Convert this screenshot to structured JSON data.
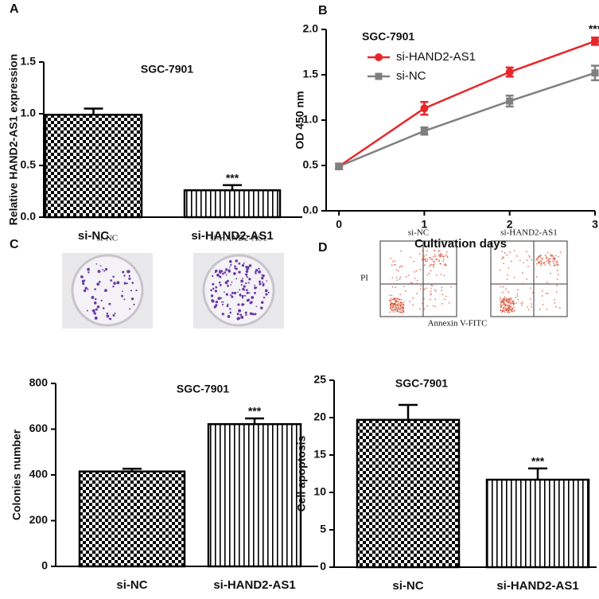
{
  "chart_data": [
    {
      "type": "bar",
      "panel": "A",
      "title": "SGC-7901",
      "ylabel": "Relative HAND2-AS1 expression",
      "categories": [
        "si-NC",
        "si-HAND2-AS1"
      ],
      "values": [
        0.99,
        0.26
      ],
      "errors": [
        0.06,
        0.05
      ],
      "value_annotations": [
        null,
        "***"
      ],
      "ylim": [
        0,
        1.5
      ],
      "yticks": [
        {
          "value": 0,
          "label": "0.0"
        },
        0.5,
        {
          "value": 1,
          "label": "1.0"
        },
        1.5
      ]
    },
    {
      "type": "line",
      "panel": "B",
      "title": "SGC-7901",
      "xlabel": "Cultivation days",
      "ylabel": "OD 450 nm",
      "x": [
        0,
        1,
        2,
        3
      ],
      "xlim": [
        -0.15,
        3
      ],
      "xticks": [
        0,
        1,
        2,
        3
      ],
      "ylim": [
        0,
        2
      ],
      "yticks": [
        {
          "value": 0,
          "label": "0.0"
        },
        0.5,
        {
          "value": 1,
          "label": "1.0"
        },
        1.5,
        {
          "value": 2,
          "label": "2.0"
        }
      ],
      "point_annotations": [
        null,
        null,
        null,
        "***"
      ],
      "series": [
        {
          "name": "si-HAND2-AS1",
          "color": "#e8262a",
          "values": [
            0.49,
            1.13,
            1.53,
            1.87
          ],
          "errors": [
            0.03,
            0.07,
            0.05,
            0.04
          ]
        },
        {
          "name": "si-NC",
          "color": "#808080",
          "values": [
            0.49,
            0.88,
            1.21,
            1.52
          ],
          "errors": [
            0.03,
            0.04,
            0.06,
            0.08
          ]
        }
      ]
    },
    {
      "type": "bar",
      "panel": "C",
      "title": "SGC-7901",
      "ylabel": "Colonies number",
      "image_labels": [
        "si-NC",
        "si-HAND2-AS1"
      ],
      "categories": [
        "si-NC",
        "si-HAND2-AS1"
      ],
      "values": [
        415,
        622
      ],
      "errors": [
        12,
        25
      ],
      "value_annotations": [
        null,
        "***"
      ],
      "ylim": [
        0,
        800
      ],
      "yticks": [
        0,
        200,
        400,
        600,
        800
      ]
    },
    {
      "type": "bar",
      "panel": "D",
      "title": "SGC-7901",
      "ylabel": "Cell apoptosis",
      "image_labels": [
        "si-NC",
        "si-HAND2-AS1"
      ],
      "image_ylabel": "PI",
      "image_xlabel": "Annexin V-FITC",
      "categories": [
        "si-NC",
        "si-HAND2-AS1"
      ],
      "values": [
        19.7,
        11.7
      ],
      "errors": [
        2.0,
        1.5
      ],
      "value_annotations": [
        null,
        "***"
      ],
      "ylim": [
        0,
        25
      ],
      "yticks": [
        0,
        5,
        10,
        15,
        20,
        25
      ]
    }
  ]
}
